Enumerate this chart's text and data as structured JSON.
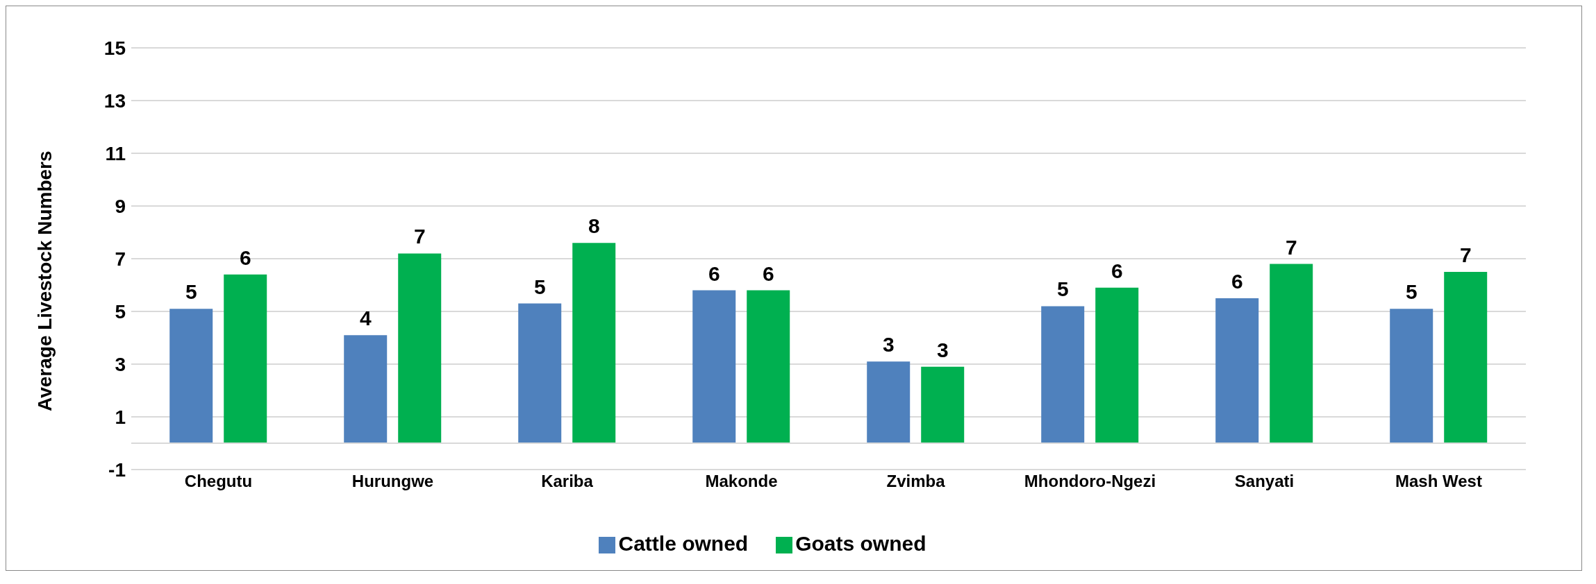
{
  "chart_data": {
    "type": "bar",
    "ylabel": "Average  Livestock Numbers",
    "categories": [
      "Chegutu",
      "Hurungwe",
      "Kariba",
      "Makonde",
      "Zvimba",
      "Mhondoro-Ngezi",
      "Sanyati",
      "Mash West"
    ],
    "series": [
      {
        "name": "Cattle owned",
        "color": "#4f81bd",
        "values": [
          5.1,
          4.1,
          5.3,
          5.8,
          3.1,
          5.2,
          5.5,
          5.1
        ],
        "value_labels": [
          "5",
          "4",
          "5",
          "6",
          "3",
          "5",
          "6",
          "5"
        ]
      },
      {
        "name": "Goats owned",
        "color": "#00b050",
        "values": [
          6.4,
          7.2,
          7.6,
          5.8,
          2.9,
          5.9,
          6.8,
          6.5
        ],
        "value_labels": [
          "6",
          "7",
          "8",
          "6",
          "3",
          "6",
          "7",
          "7"
        ]
      }
    ],
    "ylim": [
      -1,
      15
    ],
    "yticks": [
      -1,
      1,
      3,
      5,
      7,
      9,
      11,
      13,
      15
    ],
    "grid": "y",
    "legend": "bottom",
    "ref_lines": [
      {
        "axis": "y",
        "value": 0,
        "color": "#d9d9d9"
      }
    ]
  }
}
